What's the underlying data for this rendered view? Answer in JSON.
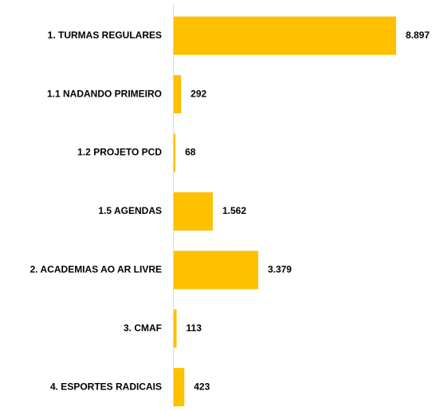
{
  "chart_data": {
    "type": "hbar",
    "categories": [
      "1. TURMAS REGULARES",
      "1.1 NADANDO PRIMEIRO",
      "1.2 PROJETO PCD",
      "1.5 AGENDAS",
      "2. ACADEMIAS AO AR LIVRE",
      "3. CMAF",
      "4. ESPORTES RADICAIS"
    ],
    "values": [
      8897,
      292,
      68,
      1562,
      3379,
      113,
      423
    ],
    "value_labels": [
      "8.897",
      "292",
      "68",
      "1.562",
      "3.379",
      "113",
      "423"
    ],
    "color": "#ffc000"
  }
}
